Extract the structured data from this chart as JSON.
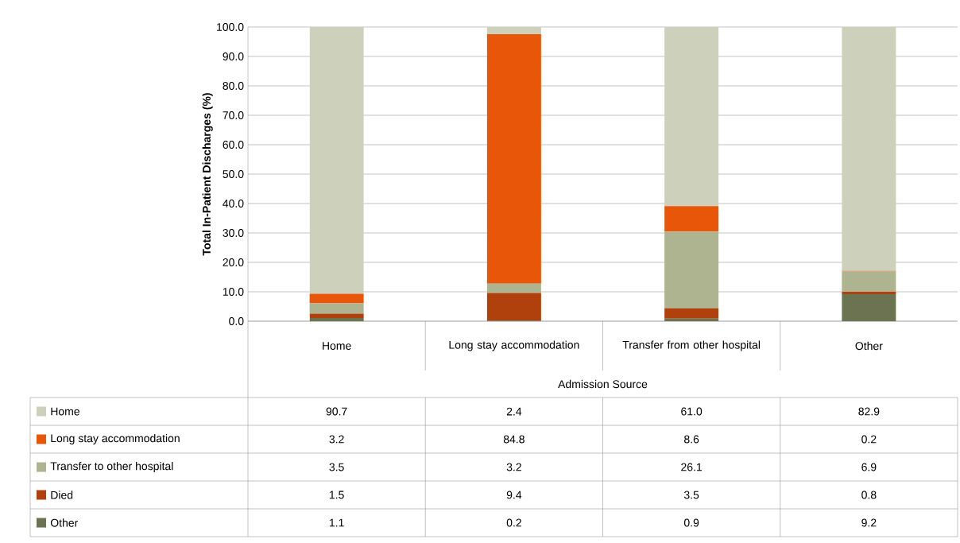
{
  "chart_data": {
    "type": "bar",
    "stacked": true,
    "xlabel": "Admission Source",
    "ylabel": "Total In-Patient Discharges (%)",
    "categories": [
      "Home",
      "Long stay accommodation",
      "Transfer from other hospital",
      "Other"
    ],
    "series": [
      {
        "name": "Other",
        "color": "#6b7350",
        "values": [
          1.1,
          0.2,
          0.9,
          9.2
        ],
        "value_labels": [
          "1.1",
          "0.2",
          "0.9",
          "9.2"
        ]
      },
      {
        "name": "Died",
        "color": "#b0400c",
        "values": [
          1.5,
          9.4,
          3.5,
          0.8
        ],
        "value_labels": [
          "1.5",
          "9.4",
          "3.5",
          "0.8"
        ]
      },
      {
        "name": "Transfer to other hospital",
        "color": "#adb48f",
        "values": [
          3.5,
          3.2,
          26.1,
          6.9
        ],
        "value_labels": [
          "3.5",
          "3.2",
          "26.1",
          "6.9"
        ]
      },
      {
        "name": "Long stay accommodation",
        "color": "#e8560a",
        "values": [
          3.2,
          84.8,
          8.6,
          0.2
        ],
        "value_labels": [
          "3.2",
          "84.8",
          "8.6",
          "0.2"
        ]
      },
      {
        "name": "Home",
        "color": "#cdd1bc",
        "values": [
          90.7,
          2.4,
          61.0,
          82.9
        ],
        "value_labels": [
          "90.7",
          "2.4",
          "61.0",
          "82.9"
        ]
      }
    ],
    "ylim": [
      0,
      100
    ],
    "yticks": [
      {
        "value": 0,
        "label": "0.0"
      },
      {
        "value": 10,
        "label": "10.0"
      },
      {
        "value": 20,
        "label": "20.0"
      },
      {
        "value": 30,
        "label": "30.0"
      },
      {
        "value": 40,
        "label": "40.0"
      },
      {
        "value": 50,
        "label": "50.0"
      },
      {
        "value": 60,
        "label": "60.0"
      },
      {
        "value": 70,
        "label": "70.0"
      },
      {
        "value": 80,
        "label": "80.0"
      },
      {
        "value": 90,
        "label": "90.0"
      },
      {
        "value": 100,
        "label": "100.0"
      }
    ],
    "grid": "y",
    "legend": "bottom left"
  }
}
